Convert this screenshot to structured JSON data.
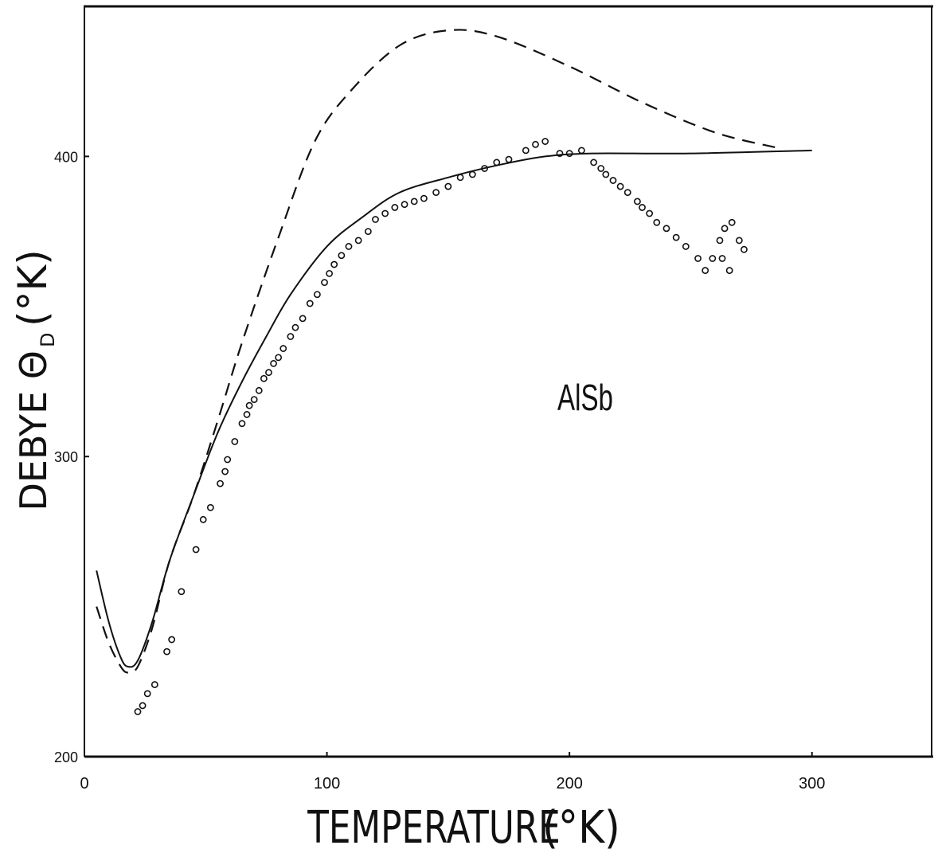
{
  "chart_data": {
    "type": "scatter",
    "xlabel": "TEMPERATURE",
    "xlabel_unit": "(°K)",
    "ylabel": "DEBYE Θ",
    "ylabel_subscript": "D",
    "ylabel_unit": "(°K)",
    "annotation": "AlSb",
    "xlim": [
      0,
      350
    ],
    "ylim": [
      200,
      450
    ],
    "x_ticks": [
      0,
      100,
      200,
      300
    ],
    "y_ticks": [
      200,
      300,
      400
    ],
    "x_tick_labels": [
      "0",
      "100",
      "200",
      "300"
    ],
    "y_tick_labels": [
      "200",
      "300",
      "400"
    ],
    "grid": false,
    "series": [
      {
        "style": "solid-line",
        "points": [
          [
            5,
            262
          ],
          [
            10,
            245
          ],
          [
            15,
            233
          ],
          [
            18,
            230
          ],
          [
            22,
            232
          ],
          [
            28,
            245
          ],
          [
            35,
            265
          ],
          [
            45,
            287
          ],
          [
            55,
            308
          ],
          [
            65,
            325
          ],
          [
            75,
            340
          ],
          [
            85,
            354
          ],
          [
            100,
            370
          ],
          [
            115,
            380
          ],
          [
            130,
            388
          ],
          [
            150,
            393
          ],
          [
            170,
            397
          ],
          [
            190,
            400
          ],
          [
            210,
            401
          ],
          [
            250,
            401
          ],
          [
            300,
            402
          ]
        ]
      },
      {
        "style": "dashed-line",
        "points": [
          [
            5,
            250
          ],
          [
            10,
            238
          ],
          [
            15,
            230
          ],
          [
            18,
            228
          ],
          [
            22,
            230
          ],
          [
            28,
            243
          ],
          [
            35,
            265
          ],
          [
            45,
            287
          ],
          [
            55,
            312
          ],
          [
            65,
            338
          ],
          [
            80,
            373
          ],
          [
            95,
            405
          ],
          [
            110,
            422
          ],
          [
            130,
            437
          ],
          [
            150,
            442
          ],
          [
            170,
            440
          ],
          [
            200,
            430
          ],
          [
            230,
            418
          ],
          [
            260,
            408
          ],
          [
            285,
            403
          ]
        ]
      },
      {
        "style": "open-circles",
        "points": [
          [
            22,
            215
          ],
          [
            24,
            217
          ],
          [
            26,
            221
          ],
          [
            29,
            224
          ],
          [
            34,
            235
          ],
          [
            36,
            239
          ],
          [
            40,
            255
          ],
          [
            46,
            269
          ],
          [
            49,
            279
          ],
          [
            52,
            283
          ],
          [
            56,
            291
          ],
          [
            58,
            295
          ],
          [
            59,
            299
          ],
          [
            62,
            305
          ],
          [
            65,
            311
          ],
          [
            67,
            314
          ],
          [
            68,
            317
          ],
          [
            70,
            319
          ],
          [
            72,
            322
          ],
          [
            74,
            326
          ],
          [
            76,
            328
          ],
          [
            78,
            331
          ],
          [
            80,
            333
          ],
          [
            82,
            336
          ],
          [
            85,
            340
          ],
          [
            87,
            343
          ],
          [
            90,
            346
          ],
          [
            93,
            351
          ],
          [
            96,
            354
          ],
          [
            99,
            358
          ],
          [
            101,
            361
          ],
          [
            103,
            364
          ],
          [
            106,
            367
          ],
          [
            109,
            370
          ],
          [
            113,
            372
          ],
          [
            117,
            375
          ],
          [
            120,
            379
          ],
          [
            124,
            381
          ],
          [
            128,
            383
          ],
          [
            132,
            384
          ],
          [
            136,
            385
          ],
          [
            140,
            386
          ],
          [
            145,
            388
          ],
          [
            150,
            390
          ],
          [
            155,
            393
          ],
          [
            160,
            394
          ],
          [
            165,
            396
          ],
          [
            170,
            398
          ],
          [
            175,
            399
          ],
          [
            182,
            402
          ],
          [
            186,
            404
          ],
          [
            190,
            405
          ],
          [
            196,
            401
          ],
          [
            200,
            401
          ],
          [
            205,
            402
          ],
          [
            210,
            398
          ],
          [
            213,
            396
          ],
          [
            215,
            394
          ],
          [
            218,
            392
          ],
          [
            221,
            390
          ],
          [
            224,
            388
          ],
          [
            228,
            385
          ],
          [
            230,
            383
          ],
          [
            233,
            381
          ],
          [
            236,
            378
          ],
          [
            240,
            376
          ],
          [
            244,
            373
          ],
          [
            248,
            370
          ],
          [
            253,
            366
          ],
          [
            256,
            362
          ],
          [
            259,
            366
          ],
          [
            262,
            372
          ],
          [
            264,
            376
          ],
          [
            267,
            378
          ],
          [
            270,
            372
          ],
          [
            272,
            369
          ],
          [
            263,
            366
          ],
          [
            266,
            362
          ]
        ]
      }
    ]
  }
}
